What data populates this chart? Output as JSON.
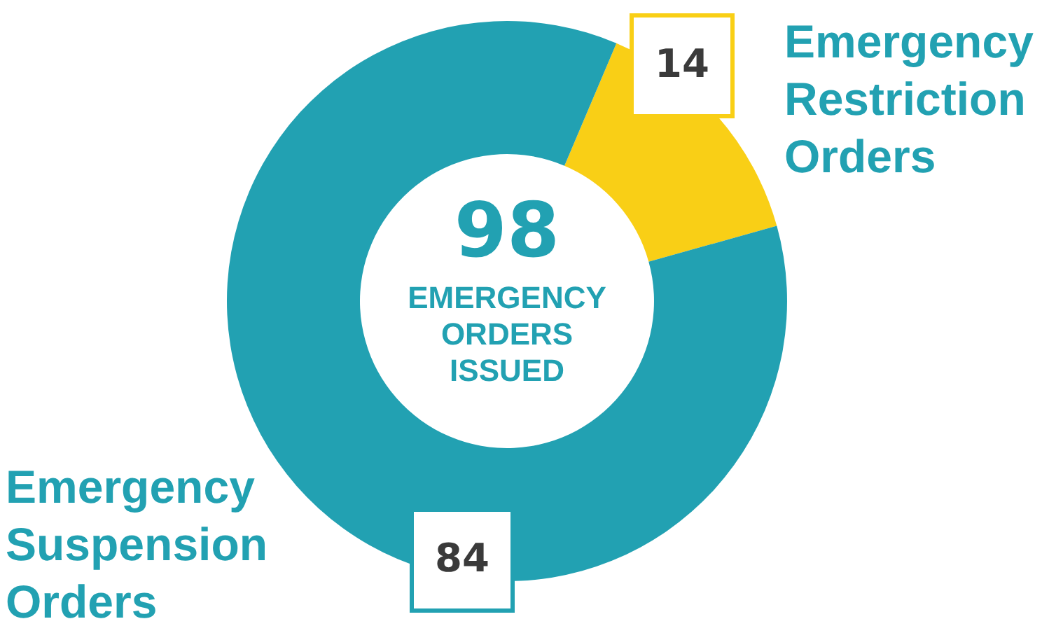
{
  "chart_data": {
    "type": "donut",
    "title": "98",
    "subtitle": "EMERGENCY ORDERS ISSUED",
    "categories": [
      "Emergency Restriction Orders",
      "Emergency Suspension Orders"
    ],
    "values": [
      14,
      84
    ],
    "colors": [
      "#f9cf16",
      "#22a1b2"
    ],
    "data_labels": true
  }
}
